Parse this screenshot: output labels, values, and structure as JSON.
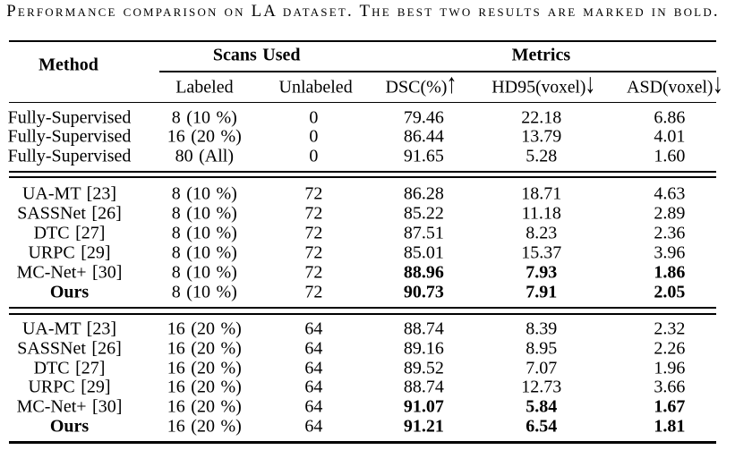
{
  "caption": "Performance comparison on LA dataset. The best two results are marked in bold.",
  "table": {
    "header_groups": {
      "method": "Method",
      "scans_used": "Scans Used",
      "metrics": "Metrics"
    },
    "columns": [
      {
        "key": "method",
        "label": "Method"
      },
      {
        "key": "labeled",
        "label": "Labeled"
      },
      {
        "key": "unlabeled",
        "label": "Unlabeled"
      },
      {
        "key": "dsc",
        "label": "DSC(%)",
        "unit": "",
        "arrow": "↑"
      },
      {
        "key": "hd95",
        "label": "HD95",
        "unit": "(voxel)",
        "arrow": "↓"
      },
      {
        "key": "asd",
        "label": "ASD",
        "unit": "(voxel)",
        "arrow": "↓"
      }
    ],
    "groups": [
      {
        "rows": [
          {
            "method": "Fully-Supervised",
            "labeled": "8 (10 %)",
            "unlabeled": "0",
            "dsc": "79.46",
            "hd95": "22.18",
            "asd": "6.86",
            "bold": []
          },
          {
            "method": "Fully-Supervised",
            "labeled": "16 (20 %)",
            "unlabeled": "0",
            "dsc": "86.44",
            "hd95": "13.79",
            "asd": "4.01",
            "bold": []
          },
          {
            "method": "Fully-Supervised",
            "labeled": "80 (All)",
            "unlabeled": "0",
            "dsc": "91.65",
            "hd95": "5.28",
            "asd": "1.60",
            "bold": []
          }
        ]
      },
      {
        "rows": [
          {
            "method": "UA-MT [23]",
            "labeled": "8 (10 %)",
            "unlabeled": "72",
            "dsc": "86.28",
            "hd95": "18.71",
            "asd": "4.63",
            "bold": []
          },
          {
            "method": "SASSNet [26]",
            "labeled": "8 (10 %)",
            "unlabeled": "72",
            "dsc": "85.22",
            "hd95": "11.18",
            "asd": "2.89",
            "bold": []
          },
          {
            "method": "DTC [27]",
            "labeled": "8 (10 %)",
            "unlabeled": "72",
            "dsc": "87.51",
            "hd95": "8.23",
            "asd": "2.36",
            "bold": []
          },
          {
            "method": "URPC [29]",
            "labeled": "8 (10 %)",
            "unlabeled": "72",
            "dsc": "85.01",
            "hd95": "15.37",
            "asd": "3.96",
            "bold": []
          },
          {
            "method": "MC-Net+ [30]",
            "labeled": "8 (10 %)",
            "unlabeled": "72",
            "dsc": "88.96",
            "hd95": "7.93",
            "asd": "1.86",
            "bold": [
              "dsc",
              "hd95",
              "asd"
            ]
          },
          {
            "method": "Ours",
            "labeled": "8 (10 %)",
            "unlabeled": "72",
            "dsc": "90.73",
            "hd95": "7.91",
            "asd": "2.05",
            "bold": [
              "method",
              "dsc",
              "hd95",
              "asd"
            ]
          }
        ]
      },
      {
        "rows": [
          {
            "method": "UA-MT [23]",
            "labeled": "16 (20 %)",
            "unlabeled": "64",
            "dsc": "88.74",
            "hd95": "8.39",
            "asd": "2.32",
            "bold": []
          },
          {
            "method": "SASSNet [26]",
            "labeled": "16 (20 %)",
            "unlabeled": "64",
            "dsc": "89.16",
            "hd95": "8.95",
            "asd": "2.26",
            "bold": []
          },
          {
            "method": "DTC [27]",
            "labeled": "16 (20 %)",
            "unlabeled": "64",
            "dsc": "89.52",
            "hd95": "7.07",
            "asd": "1.96",
            "bold": []
          },
          {
            "method": "URPC [29]",
            "labeled": "16 (20 %)",
            "unlabeled": "64",
            "dsc": "88.74",
            "hd95": "12.73",
            "asd": "3.66",
            "bold": []
          },
          {
            "method": "MC-Net+ [30]",
            "labeled": "16 (20 %)",
            "unlabeled": "64",
            "dsc": "91.07",
            "hd95": "5.84",
            "asd": "1.67",
            "bold": [
              "dsc",
              "hd95",
              "asd"
            ]
          },
          {
            "method": "Ours",
            "labeled": "16 (20 %)",
            "unlabeled": "64",
            "dsc": "91.21",
            "hd95": "6.54",
            "asd": "1.81",
            "bold": [
              "method",
              "dsc",
              "hd95",
              "asd"
            ]
          }
        ]
      }
    ],
    "colors": {
      "ink": "#000000",
      "background": "#ffffff"
    }
  }
}
